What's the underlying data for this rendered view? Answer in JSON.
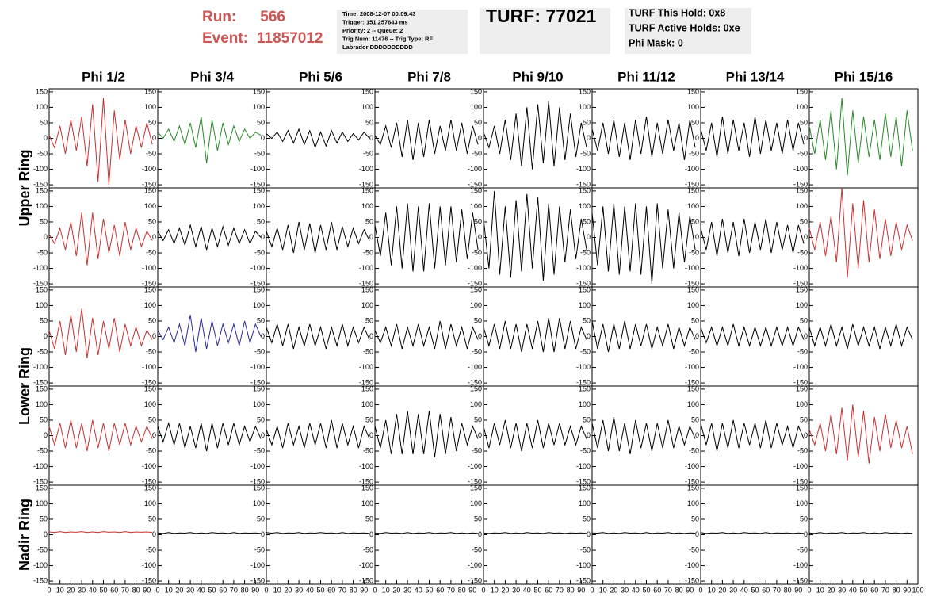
{
  "header": {
    "run_label": "Run:",
    "run": "566",
    "event_label": "Event:",
    "event": "11857012",
    "info": [
      "Time: 2008-12-07 00:09:43",
      "Trigger: 151.257643 ms",
      "Priority: 2 -- Queue: 2",
      "Trig Num: 11476 -- Trig Type: RF",
      "Labrador DDDDDDDDDD"
    ],
    "turf": "TURF: 77021",
    "turf_info": [
      "TURF This Hold: 0x8",
      "TURF Active Holds: 0xe",
      "Phi Mask: 0"
    ]
  },
  "chart_data": {
    "type": "line",
    "column_labels": [
      "Phi 1/2",
      "Phi 3/4",
      "Phi 5/6",
      "Phi 7/8",
      "Phi 9/10",
      "Phi 11/12",
      "Phi 13/14",
      "Phi 15/16"
    ],
    "row_labels": [
      "Upper Ring",
      "Lower Ring",
      "Nadir Ring"
    ],
    "x": [
      0,
      5,
      10,
      15,
      20,
      25,
      30,
      35,
      40,
      45,
      50,
      55,
      60,
      65,
      70,
      75,
      80,
      85,
      90,
      95
    ],
    "xlim": [
      0,
      100
    ],
    "ylim": [
      -160,
      160
    ],
    "xticks": [
      0,
      10,
      20,
      30,
      40,
      50,
      60,
      70,
      80,
      90,
      100
    ],
    "yticks": [
      -150,
      -100,
      -50,
      0,
      50,
      100,
      150
    ],
    "series": [
      {
        "color": "#c83232",
        "values": [
          10,
          -30,
          40,
          -50,
          60,
          -40,
          70,
          -90,
          110,
          -140,
          130,
          -150,
          90,
          -70,
          60,
          -50,
          40,
          -30,
          50,
          -20
        ]
      },
      {
        "color": "#2a8a2a",
        "values": [
          20,
          0,
          30,
          -10,
          40,
          -20,
          50,
          -30,
          70,
          -80,
          60,
          -40,
          50,
          -20,
          40,
          -10,
          30,
          0,
          20,
          10
        ]
      },
      {
        "color": "#000000",
        "values": [
          15,
          0,
          20,
          -10,
          25,
          -15,
          30,
          -20,
          25,
          -30,
          20,
          -25,
          25,
          -15,
          20,
          -10,
          15,
          -5,
          20,
          0
        ]
      },
      {
        "color": "#000000",
        "values": [
          10,
          -20,
          40,
          -30,
          50,
          -60,
          60,
          -70,
          50,
          -60,
          60,
          -50,
          40,
          -40,
          60,
          -40,
          50,
          -50,
          40,
          -20
        ]
      },
      {
        "color": "#000000",
        "values": [
          20,
          -30,
          40,
          -50,
          60,
          -70,
          80,
          -90,
          100,
          -100,
          110,
          -80,
          120,
          -90,
          100,
          -70,
          80,
          -60,
          50,
          -30
        ]
      },
      {
        "color": "#000000",
        "values": [
          30,
          -40,
          50,
          -50,
          60,
          -60,
          50,
          -70,
          60,
          -50,
          70,
          -60,
          50,
          -50,
          60,
          -40,
          50,
          -70,
          60,
          -30
        ]
      },
      {
        "color": "#000000",
        "values": [
          30,
          -40,
          50,
          -60,
          70,
          -50,
          60,
          -40,
          50,
          -60,
          70,
          -50,
          60,
          -40,
          50,
          -50,
          60,
          -40,
          50,
          -20
        ]
      },
      {
        "color": "#2a8a2a",
        "values": [
          40,
          -50,
          60,
          -70,
          90,
          -100,
          130,
          -120,
          90,
          -80,
          70,
          -60,
          60,
          -70,
          80,
          -60,
          70,
          -90,
          90,
          -40
        ]
      },
      {
        "color": "#c83232",
        "values": [
          10,
          -20,
          30,
          -40,
          50,
          -60,
          80,
          -90,
          80,
          -70,
          60,
          -50,
          40,
          -60,
          50,
          -40,
          30,
          -30,
          20,
          -10
        ]
      },
      {
        "color": "#000000",
        "values": [
          20,
          -10,
          25,
          -20,
          30,
          -25,
          40,
          -30,
          35,
          -40,
          30,
          -30,
          35,
          -25,
          30,
          -20,
          25,
          -20,
          20,
          0
        ]
      },
      {
        "color": "#000000",
        "values": [
          20,
          -30,
          30,
          -40,
          40,
          -50,
          50,
          -40,
          45,
          -50,
          40,
          -40,
          50,
          -40,
          35,
          -30,
          30,
          -20,
          25,
          -10
        ]
      },
      {
        "color": "#000000",
        "values": [
          40,
          -60,
          80,
          -90,
          100,
          -100,
          110,
          -110,
          100,
          -110,
          110,
          -100,
          100,
          -90,
          100,
          -80,
          90,
          -70,
          80,
          -40
        ]
      },
      {
        "color": "#000000",
        "values": [
          60,
          -100,
          150,
          -120,
          100,
          -130,
          120,
          -110,
          140,
          -100,
          130,
          -140,
          110,
          -120,
          100,
          -80,
          90,
          -70,
          60,
          -40
        ]
      },
      {
        "color": "#000000",
        "values": [
          80,
          -90,
          100,
          -110,
          110,
          -120,
          100,
          -110,
          110,
          -120,
          100,
          -150,
          110,
          -100,
          90,
          -100,
          80,
          -80,
          70,
          -40
        ]
      },
      {
        "color": "#000000",
        "values": [
          30,
          -40,
          50,
          -60,
          60,
          -50,
          50,
          -60,
          60,
          -50,
          50,
          -40,
          60,
          -50,
          50,
          -40,
          40,
          -50,
          40,
          -20
        ]
      },
      {
        "color": "#c83232",
        "values": [
          30,
          -40,
          50,
          -60,
          70,
          -80,
          160,
          -130,
          110,
          -100,
          120,
          -80,
          90,
          -70,
          60,
          -60,
          50,
          -40,
          40,
          -10
        ]
      },
      {
        "color": "#c83232",
        "values": [
          20,
          -40,
          50,
          -60,
          70,
          -50,
          90,
          -70,
          60,
          -60,
          50,
          -40,
          60,
          -50,
          40,
          -30,
          30,
          -30,
          20,
          -10
        ]
      },
      {
        "color": "#2a2a9a",
        "values": [
          20,
          -10,
          30,
          -20,
          40,
          -30,
          70,
          -50,
          60,
          -40,
          50,
          -30,
          40,
          -20,
          40,
          -30,
          50,
          -20,
          40,
          0
        ]
      },
      {
        "color": "#000000",
        "values": [
          30,
          -20,
          40,
          -30,
          40,
          -40,
          30,
          -30,
          40,
          -30,
          30,
          -40,
          30,
          -30,
          40,
          -30,
          30,
          -20,
          30,
          -10
        ]
      },
      {
        "color": "#000000",
        "values": [
          20,
          -20,
          30,
          -30,
          40,
          -40,
          30,
          -30,
          40,
          -30,
          30,
          -40,
          50,
          -40,
          40,
          -30,
          30,
          -40,
          30,
          -10
        ]
      },
      {
        "color": "#000000",
        "values": [
          30,
          -30,
          40,
          -40,
          50,
          -40,
          40,
          -50,
          40,
          -40,
          50,
          -50,
          60,
          -50,
          60,
          -40,
          50,
          -40,
          30,
          -10
        ]
      },
      {
        "color": "#000000",
        "values": [
          50,
          -40,
          40,
          -50,
          40,
          -40,
          50,
          -40,
          40,
          -30,
          40,
          -40,
          30,
          -30,
          40,
          -40,
          30,
          -30,
          30,
          -10
        ]
      },
      {
        "color": "#000000",
        "values": [
          30,
          -20,
          30,
          -30,
          30,
          -30,
          40,
          -30,
          30,
          -30,
          30,
          -30,
          30,
          -30,
          30,
          -30,
          30,
          -30,
          30,
          -10
        ]
      },
      {
        "color": "#000000",
        "values": [
          30,
          -30,
          30,
          -30,
          40,
          -30,
          30,
          -40,
          40,
          -30,
          30,
          -30,
          30,
          -40,
          30,
          -30,
          40,
          -30,
          30,
          -10
        ]
      },
      {
        "color": "#c83232",
        "values": [
          30,
          -30,
          40,
          -40,
          50,
          -40,
          40,
          -50,
          50,
          -40,
          40,
          -50,
          40,
          -30,
          40,
          -30,
          30,
          -20,
          30,
          -10
        ]
      },
      {
        "color": "#000000",
        "values": [
          30,
          -20,
          40,
          -30,
          40,
          -40,
          30,
          -40,
          40,
          -50,
          40,
          -40,
          40,
          -30,
          40,
          -30,
          30,
          -20,
          30,
          -10
        ]
      },
      {
        "color": "#000000",
        "values": [
          20,
          -30,
          30,
          -40,
          40,
          -30,
          30,
          -40,
          40,
          -30,
          40,
          -40,
          50,
          -40,
          40,
          -30,
          30,
          -40,
          30,
          -10
        ]
      },
      {
        "color": "#000000",
        "values": [
          30,
          -40,
          50,
          -60,
          70,
          -60,
          80,
          -60,
          70,
          -60,
          80,
          -70,
          70,
          -60,
          60,
          -50,
          40,
          -30,
          30,
          -10
        ]
      },
      {
        "color": "#000000",
        "values": [
          30,
          -40,
          40,
          -30,
          50,
          -40,
          40,
          -50,
          40,
          -40,
          50,
          -40,
          40,
          -30,
          40,
          -30,
          30,
          -30,
          30,
          -10
        ]
      },
      {
        "color": "#000000",
        "values": [
          40,
          -40,
          50,
          -50,
          60,
          -50,
          40,
          -60,
          50,
          -40,
          40,
          -50,
          40,
          -40,
          50,
          -40,
          30,
          -30,
          30,
          -10
        ]
      },
      {
        "color": "#000000",
        "values": [
          40,
          -30,
          40,
          -50,
          40,
          -40,
          50,
          -40,
          40,
          -30,
          40,
          -40,
          50,
          -40,
          40,
          -30,
          30,
          -40,
          30,
          -10
        ]
      },
      {
        "color": "#c83232",
        "values": [
          20,
          -30,
          40,
          -50,
          70,
          -60,
          90,
          -80,
          100,
          -70,
          80,
          -90,
          60,
          -50,
          70,
          -40,
          50,
          -40,
          30,
          -60
        ]
      },
      {
        "color": "#c83232",
        "values": [
          9,
          7,
          10,
          7,
          9,
          8,
          10,
          7,
          9,
          7,
          10,
          8,
          9,
          7,
          10,
          7,
          9,
          8,
          9,
          7
        ]
      },
      {
        "color": "#000000",
        "values": [
          6,
          4,
          7,
          4,
          6,
          5,
          7,
          4,
          6,
          4,
          7,
          5,
          6,
          4,
          7,
          4,
          6,
          5,
          6,
          4
        ]
      },
      {
        "color": "#000000",
        "values": [
          7,
          5,
          7,
          4,
          6,
          5,
          7,
          4,
          6,
          5,
          7,
          5,
          6,
          4,
          7,
          4,
          6,
          5,
          6,
          4
        ]
      },
      {
        "color": "#000000",
        "values": [
          6,
          4,
          7,
          5,
          6,
          4,
          7,
          4,
          6,
          5,
          7,
          4,
          6,
          5,
          7,
          4,
          6,
          4,
          6,
          4
        ]
      },
      {
        "color": "#000000",
        "values": [
          6,
          4,
          6,
          5,
          7,
          4,
          6,
          4,
          7,
          5,
          6,
          4,
          7,
          5,
          6,
          4,
          6,
          5,
          6,
          4
        ]
      },
      {
        "color": "#000000",
        "values": [
          6,
          5,
          7,
          4,
          6,
          4,
          7,
          5,
          6,
          4,
          7,
          4,
          6,
          5,
          7,
          4,
          6,
          4,
          6,
          5
        ]
      },
      {
        "color": "#000000",
        "values": [
          7,
          4,
          6,
          5,
          7,
          4,
          6,
          4,
          7,
          5,
          6,
          4,
          7,
          4,
          6,
          5,
          6,
          4,
          6,
          4
        ]
      },
      {
        "color": "#000000",
        "values": [
          6,
          4,
          7,
          4,
          6,
          5,
          7,
          4,
          6,
          5,
          7,
          4,
          6,
          4,
          7,
          5,
          6,
          4,
          6,
          4
        ]
      }
    ]
  }
}
